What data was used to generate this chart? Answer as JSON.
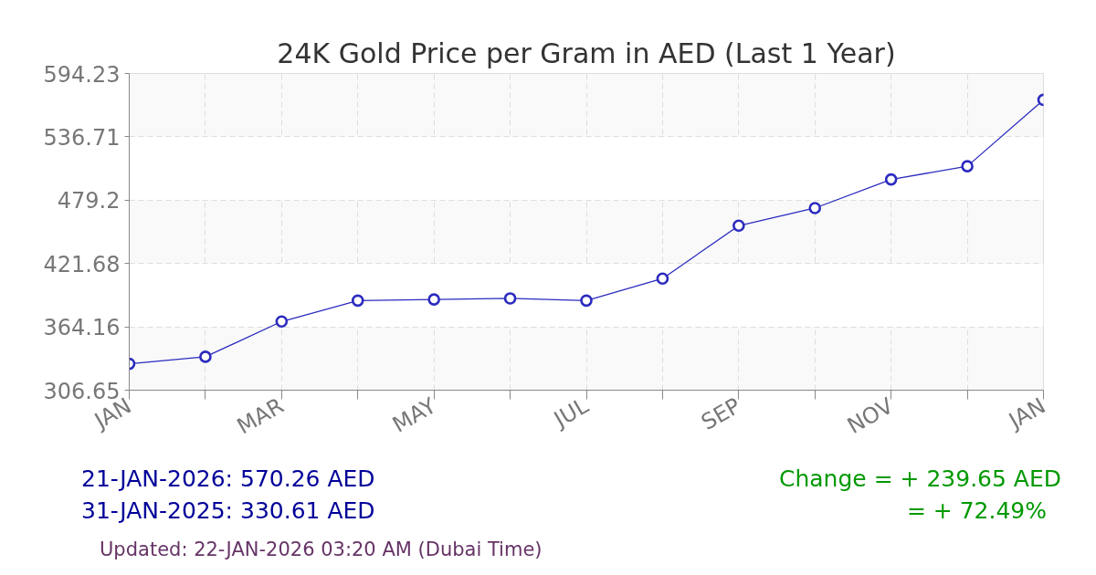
{
  "chart_data": {
    "type": "line",
    "title": "24K Gold Price per Gram in AED (Last 1 Year)",
    "categories": [
      "JAN",
      null,
      "MAR",
      null,
      "MAY",
      null,
      "JUL",
      null,
      "SEP",
      null,
      "NOV",
      null,
      "JAN"
    ],
    "series": [
      {
        "color": "#2b2bbf",
        "values": [
          330.61,
          337,
          369,
          388,
          389,
          390,
          388,
          408,
          456,
          472,
          498,
          510,
          570.26
        ]
      }
    ],
    "ylim": [
      306.65,
      594.23
    ],
    "yticks": [
      306.65,
      364.16,
      421.68,
      479.2,
      536.71,
      594.23
    ],
    "grid": true,
    "marker": "circle",
    "annotations": [
      "21-JAN-2026: 570.26 AED",
      "31-JAN-2025: 330.61 AED",
      "Change = + 239.65 AED",
      "= + 72.49%",
      "Updated: 22-JAN-2026 03:20 AM (Dubai Time)"
    ]
  }
}
